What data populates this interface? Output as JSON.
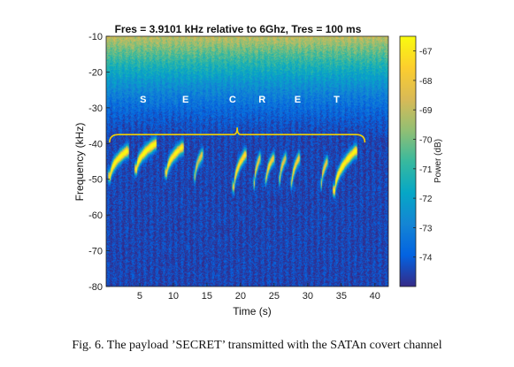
{
  "chart_data": {
    "type": "heatmap",
    "title": "Fres = 3.9101 kHz relative to 6Ghz, Tres = 100 ms",
    "xlabel": "Time (s)",
    "ylabel": "Frequency (kHz)",
    "xlim": [
      0,
      42
    ],
    "ylim": [
      -80,
      -10
    ],
    "xticks": [
      5,
      10,
      15,
      20,
      25,
      30,
      35,
      40
    ],
    "yticks": [
      -10,
      -20,
      -30,
      -40,
      -50,
      -60,
      -70,
      -80
    ],
    "colorbar": {
      "label": "Power (dB)",
      "range": [
        -75,
        -66.5
      ],
      "ticks": [
        -67,
        -68,
        -69,
        -70,
        -71,
        -72,
        -73,
        -74
      ],
      "colormap": "parula",
      "colors": [
        "#352a87",
        "#0363e1",
        "#1485d4",
        "#06a7c6",
        "#38b99e",
        "#92bf73",
        "#d9ba56",
        "#fcce2e",
        "#f9fb0e"
      ]
    },
    "annotations": {
      "letters": [
        {
          "text": "S",
          "x": 5.5
        },
        {
          "text": "E",
          "x": 11.8
        },
        {
          "text": "C",
          "x": 18.8
        },
        {
          "text": "R",
          "x": 23.2
        },
        {
          "text": "E",
          "x": 28.5
        },
        {
          "text": "T",
          "x": 34.3
        }
      ],
      "letter_y": -28.5,
      "brace": {
        "x_start": 0.5,
        "x_end": 38.5,
        "y": -37.5
      },
      "brace_color": "#f2d000"
    },
    "bursts": [
      {
        "t_start": 0.6,
        "t_end": 3.0,
        "f_start": -49,
        "f_end": -42,
        "strength": 1.0
      },
      {
        "t_start": 4.5,
        "t_end": 7.2,
        "f_start": -47,
        "f_end": -40,
        "strength": 1.0
      },
      {
        "t_start": 9.0,
        "t_end": 11.2,
        "f_start": -48,
        "f_end": -41,
        "strength": 0.95
      },
      {
        "t_start": 13.2,
        "t_end": 14.2,
        "f_start": -49,
        "f_end": -43,
        "strength": 0.75
      },
      {
        "t_start": 19.0,
        "t_end": 20.6,
        "f_start": -52,
        "f_end": -43,
        "strength": 0.9
      },
      {
        "t_start": 22.0,
        "t_end": 22.8,
        "f_start": -51,
        "f_end": -44,
        "strength": 0.8
      },
      {
        "t_start": 23.8,
        "t_end": 24.8,
        "f_start": -50,
        "f_end": -44,
        "strength": 0.85
      },
      {
        "t_start": 25.8,
        "t_end": 26.6,
        "f_start": -50,
        "f_end": -44,
        "strength": 0.8
      },
      {
        "t_start": 27.6,
        "t_end": 28.6,
        "f_start": -51,
        "f_end": -44,
        "strength": 0.85
      },
      {
        "t_start": 32.0,
        "t_end": 32.8,
        "f_start": -51,
        "f_end": -45,
        "strength": 0.8
      },
      {
        "t_start": 34.0,
        "t_end": 37.0,
        "f_start": -53,
        "f_end": -42,
        "strength": 1.0
      }
    ]
  },
  "caption": "Fig. 6.  The payload ’SECRET’ transmitted with the SATAn covert channel"
}
